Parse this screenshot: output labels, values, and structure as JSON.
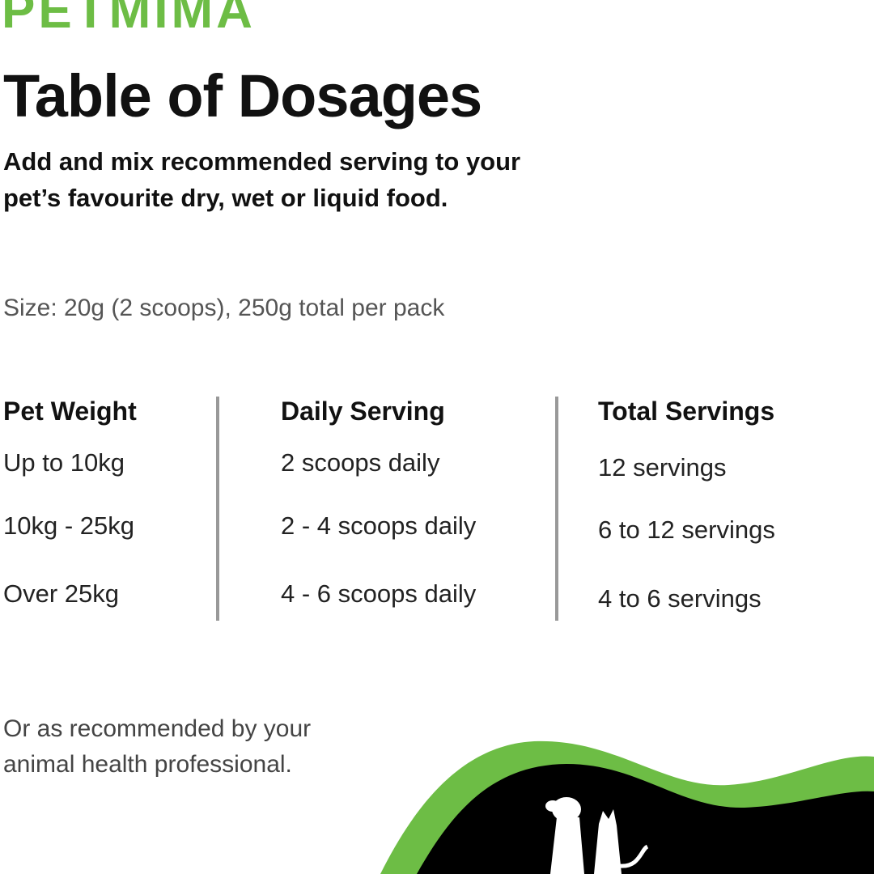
{
  "brand": {
    "logo_text": "PETMIMA",
    "accent_color": "#6dbd45"
  },
  "title": "Table of Dosages",
  "subtitle": [
    "Add and mix recommended serving to your",
    "pet’s favourite dry, wet or liquid food."
  ],
  "size_info": "Size: 20g (2 scoops), 250g total per pack",
  "table": {
    "headers": [
      "Pet Weight",
      "Daily Serving",
      "Total Servings"
    ],
    "rows": [
      [
        "Up to 10kg",
        "2 scoops daily",
        "12 servings"
      ],
      [
        "10kg - 25kg",
        "2 - 4 scoops daily",
        "6 to 12 servings"
      ],
      [
        "Over 25kg",
        "4 - 6 scoops daily",
        "4 to 6 servings"
      ]
    ]
  },
  "footer": [
    "Or as recommended by your",
    "animal health professional."
  ],
  "decoration": {
    "icon": "dog-and-cat-silhouette-icon",
    "wave_colors": [
      "#6dbd45",
      "#000000"
    ]
  }
}
